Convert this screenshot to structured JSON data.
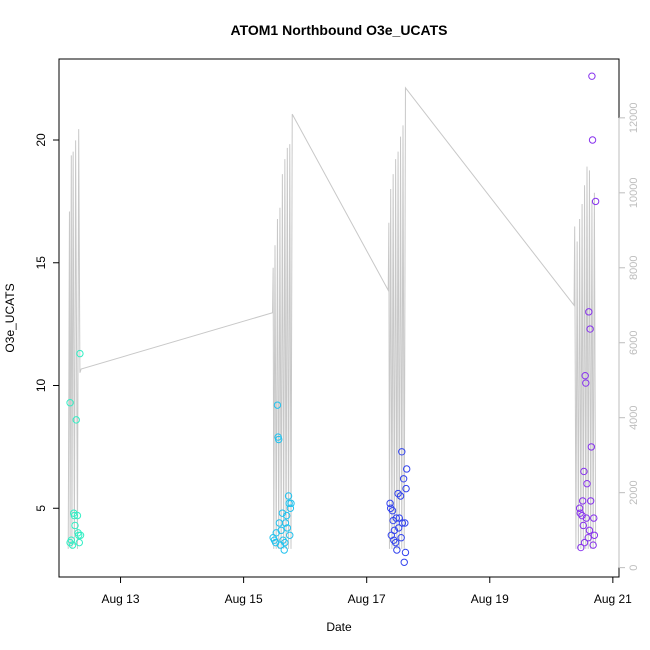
{
  "chart_data": {
    "type": "scatter",
    "title": "ATOM1 Northbound O3e_UCATS",
    "xlabel": "Date",
    "ylabel": "O3e_UCATS",
    "x_ticks": [
      {
        "day": 13,
        "label": "Aug 13"
      },
      {
        "day": 15,
        "label": "Aug 15"
      },
      {
        "day": 17,
        "label": "Aug 17"
      },
      {
        "day": 19,
        "label": "Aug 19"
      },
      {
        "day": 21,
        "label": "Aug 21"
      }
    ],
    "y_ticks": [
      5,
      10,
      15,
      20
    ],
    "y_right_ticks": [
      0,
      2000,
      4000,
      6000,
      8000,
      10000,
      12000
    ],
    "xlim": [
      12.0,
      21.1
    ],
    "ylim": [
      2.2,
      23.3
    ],
    "y_right_lim": [
      -250,
      13570
    ],
    "colors": {
      "g1": "#33eec4",
      "g2": "#22c2ee",
      "g3": "#3344ee",
      "g4": "#8833ee",
      "altitude": "#c8c8c8"
    },
    "series": [
      {
        "group": 1,
        "color_key": "g1",
        "points": [
          {
            "x": 12.18,
            "y": 9.3
          },
          {
            "x": 12.18,
            "y": 3.6
          },
          {
            "x": 12.2,
            "y": 3.7
          },
          {
            "x": 12.22,
            "y": 3.5
          },
          {
            "x": 12.24,
            "y": 4.8
          },
          {
            "x": 12.25,
            "y": 4.7
          },
          {
            "x": 12.26,
            "y": 4.3
          },
          {
            "x": 12.28,
            "y": 8.6
          },
          {
            "x": 12.3,
            "y": 4.7
          },
          {
            "x": 12.31,
            "y": 4.0
          },
          {
            "x": 12.32,
            "y": 3.9
          },
          {
            "x": 12.33,
            "y": 3.6
          },
          {
            "x": 12.34,
            "y": 11.3
          },
          {
            "x": 12.35,
            "y": 3.9
          }
        ]
      },
      {
        "group": 2,
        "color_key": "g2",
        "points": [
          {
            "x": 15.48,
            "y": 3.8
          },
          {
            "x": 15.5,
            "y": 3.7
          },
          {
            "x": 15.52,
            "y": 3.6
          },
          {
            "x": 15.53,
            "y": 4.0
          },
          {
            "x": 15.55,
            "y": 9.2
          },
          {
            "x": 15.56,
            "y": 7.9
          },
          {
            "x": 15.57,
            "y": 7.8
          },
          {
            "x": 15.58,
            "y": 4.4
          },
          {
            "x": 15.6,
            "y": 3.5
          },
          {
            "x": 15.61,
            "y": 4.1
          },
          {
            "x": 15.63,
            "y": 4.8
          },
          {
            "x": 15.64,
            "y": 3.7
          },
          {
            "x": 15.66,
            "y": 3.3
          },
          {
            "x": 15.67,
            "y": 3.6
          },
          {
            "x": 15.68,
            "y": 4.4
          },
          {
            "x": 15.7,
            "y": 4.7
          },
          {
            "x": 15.71,
            "y": 4.2
          },
          {
            "x": 15.73,
            "y": 5.5
          },
          {
            "x": 15.74,
            "y": 5.2
          },
          {
            "x": 15.75,
            "y": 3.9
          },
          {
            "x": 15.76,
            "y": 5.0
          },
          {
            "x": 15.77,
            "y": 5.2
          }
        ]
      },
      {
        "group": 3,
        "color_key": "g3",
        "points": [
          {
            "x": 17.38,
            "y": 5.2
          },
          {
            "x": 17.39,
            "y": 5.0
          },
          {
            "x": 17.4,
            "y": 3.9
          },
          {
            "x": 17.42,
            "y": 4.9
          },
          {
            "x": 17.43,
            "y": 4.5
          },
          {
            "x": 17.44,
            "y": 3.7
          },
          {
            "x": 17.45,
            "y": 4.1
          },
          {
            "x": 17.47,
            "y": 3.6
          },
          {
            "x": 17.48,
            "y": 4.6
          },
          {
            "x": 17.49,
            "y": 3.3
          },
          {
            "x": 17.51,
            "y": 5.6
          },
          {
            "x": 17.52,
            "y": 4.2
          },
          {
            "x": 17.53,
            "y": 4.6
          },
          {
            "x": 17.55,
            "y": 5.5
          },
          {
            "x": 17.56,
            "y": 3.8
          },
          {
            "x": 17.57,
            "y": 7.3
          },
          {
            "x": 17.58,
            "y": 4.4
          },
          {
            "x": 17.6,
            "y": 6.2
          },
          {
            "x": 17.61,
            "y": 2.8
          },
          {
            "x": 17.62,
            "y": 4.4
          },
          {
            "x": 17.63,
            "y": 3.2
          },
          {
            "x": 17.64,
            "y": 5.8
          },
          {
            "x": 17.65,
            "y": 6.6
          }
        ]
      },
      {
        "group": 4,
        "color_key": "g4",
        "points": [
          {
            "x": 20.46,
            "y": 5.0
          },
          {
            "x": 20.47,
            "y": 4.8
          },
          {
            "x": 20.48,
            "y": 3.4
          },
          {
            "x": 20.5,
            "y": 4.7
          },
          {
            "x": 20.51,
            "y": 5.3
          },
          {
            "x": 20.52,
            "y": 4.3
          },
          {
            "x": 20.53,
            "y": 6.5
          },
          {
            "x": 20.54,
            "y": 3.6
          },
          {
            "x": 20.55,
            "y": 10.4
          },
          {
            "x": 20.56,
            "y": 10.1
          },
          {
            "x": 20.57,
            "y": 4.6
          },
          {
            "x": 20.58,
            "y": 6.0
          },
          {
            "x": 20.6,
            "y": 3.8
          },
          {
            "x": 20.61,
            "y": 13.0
          },
          {
            "x": 20.62,
            "y": 4.1
          },
          {
            "x": 20.63,
            "y": 12.3
          },
          {
            "x": 20.64,
            "y": 5.3
          },
          {
            "x": 20.65,
            "y": 7.5
          },
          {
            "x": 20.66,
            "y": 22.6
          },
          {
            "x": 20.67,
            "y": 20.0
          },
          {
            "x": 20.68,
            "y": 3.5
          },
          {
            "x": 20.69,
            "y": 4.6
          },
          {
            "x": 20.7,
            "y": 3.9
          },
          {
            "x": 20.72,
            "y": 17.5
          }
        ]
      }
    ],
    "altitude": [
      {
        "x": 12.15,
        "y": 500
      },
      {
        "x": 12.17,
        "y": 9500
      },
      {
        "x": 12.18,
        "y": 600
      },
      {
        "x": 12.2,
        "y": 11000
      },
      {
        "x": 12.21,
        "y": 500
      },
      {
        "x": 12.23,
        "y": 11100
      },
      {
        "x": 12.25,
        "y": 600
      },
      {
        "x": 12.27,
        "y": 11400
      },
      {
        "x": 12.3,
        "y": 500
      },
      {
        "x": 12.32,
        "y": 11700
      },
      {
        "x": 12.34,
        "y": 5200
      },
      {
        "x": 12.36,
        "y": 5300
      },
      {
        "x": 15.47,
        "y": 6800
      },
      {
        "x": 15.48,
        "y": 8000
      },
      {
        "x": 15.49,
        "y": 500
      },
      {
        "x": 15.51,
        "y": 8600
      },
      {
        "x": 15.53,
        "y": 500
      },
      {
        "x": 15.55,
        "y": 9300
      },
      {
        "x": 15.57,
        "y": 500
      },
      {
        "x": 15.59,
        "y": 9600
      },
      {
        "x": 15.61,
        "y": 500
      },
      {
        "x": 15.63,
        "y": 10500
      },
      {
        "x": 15.65,
        "y": 500
      },
      {
        "x": 15.67,
        "y": 10900
      },
      {
        "x": 15.69,
        "y": 500
      },
      {
        "x": 15.71,
        "y": 11200
      },
      {
        "x": 15.73,
        "y": 500
      },
      {
        "x": 15.75,
        "y": 11300
      },
      {
        "x": 15.77,
        "y": 500
      },
      {
        "x": 15.79,
        "y": 12100
      },
      {
        "x": 17.35,
        "y": 7400
      },
      {
        "x": 17.36,
        "y": 9200
      },
      {
        "x": 17.37,
        "y": 500
      },
      {
        "x": 17.39,
        "y": 10100
      },
      {
        "x": 17.41,
        "y": 500
      },
      {
        "x": 17.43,
        "y": 10500
      },
      {
        "x": 17.45,
        "y": 500
      },
      {
        "x": 17.47,
        "y": 10900
      },
      {
        "x": 17.49,
        "y": 500
      },
      {
        "x": 17.51,
        "y": 11100
      },
      {
        "x": 17.53,
        "y": 500
      },
      {
        "x": 17.55,
        "y": 11500
      },
      {
        "x": 17.57,
        "y": 500
      },
      {
        "x": 17.59,
        "y": 11800
      },
      {
        "x": 17.61,
        "y": 500
      },
      {
        "x": 17.63,
        "y": 12800
      },
      {
        "x": 20.37,
        "y": 7000
      },
      {
        "x": 20.38,
        "y": 9100
      },
      {
        "x": 20.4,
        "y": 500
      },
      {
        "x": 20.42,
        "y": 8700
      },
      {
        "x": 20.44,
        "y": 500
      },
      {
        "x": 20.46,
        "y": 9300
      },
      {
        "x": 20.48,
        "y": 500
      },
      {
        "x": 20.5,
        "y": 9700
      },
      {
        "x": 20.52,
        "y": 500
      },
      {
        "x": 20.54,
        "y": 10200
      },
      {
        "x": 20.56,
        "y": 500
      },
      {
        "x": 20.58,
        "y": 10700
      },
      {
        "x": 20.6,
        "y": 500
      },
      {
        "x": 20.62,
        "y": 10600
      },
      {
        "x": 20.64,
        "y": 500
      },
      {
        "x": 20.66,
        "y": 9800
      },
      {
        "x": 20.68,
        "y": 500
      },
      {
        "x": 20.7,
        "y": 10000
      },
      {
        "x": 20.72,
        "y": 600
      }
    ],
    "grid": false,
    "legend": "none"
  }
}
